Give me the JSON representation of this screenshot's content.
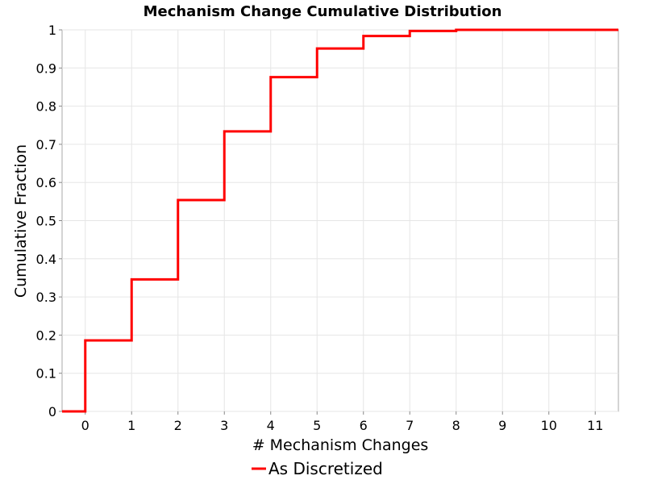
{
  "chart_data": {
    "type": "line",
    "step": true,
    "title": "Mechanism Change Cumulative Distribution",
    "xlabel": "# Mechanism Changes",
    "ylabel": "Cumulative Fraction",
    "xlim": [
      -0.5,
      11.5
    ],
    "ylim": [
      0,
      1
    ],
    "x_ticks": [
      0,
      1,
      2,
      3,
      4,
      5,
      6,
      7,
      8,
      9,
      10,
      11
    ],
    "y_ticks": [
      0,
      0.1,
      0.2,
      0.3,
      0.4,
      0.5,
      0.6,
      0.7,
      0.8,
      0.9,
      1
    ],
    "y_tick_labels": [
      "0",
      "0.1",
      "0.2",
      "0.3",
      "0.4",
      "0.5",
      "0.6",
      "0.7",
      "0.8",
      "0.9",
      "1"
    ],
    "grid": true,
    "legend_position": "bottom",
    "series": [
      {
        "name": "As Discretized",
        "color": "#ff0000",
        "x": [
          -0.5,
          0,
          1,
          2,
          3,
          4,
          5,
          6,
          7,
          8,
          11.5
        ],
        "y": [
          0,
          0.186,
          0.346,
          0.554,
          0.734,
          0.876,
          0.951,
          0.984,
          0.997,
          1.0,
          1.0
        ]
      }
    ]
  }
}
